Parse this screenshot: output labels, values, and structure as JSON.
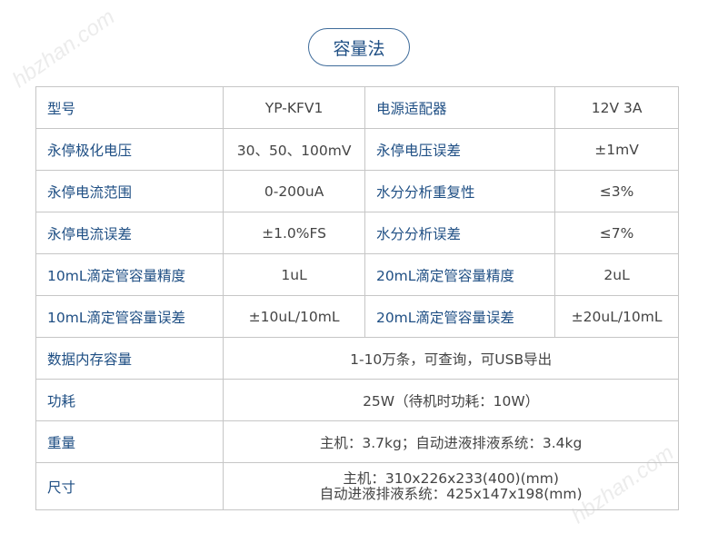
{
  "title": "容量法",
  "watermark": "hbzhan.com",
  "rows4": [
    {
      "l1": "型号",
      "v1": "YP-KFV1",
      "l2": "电源适配器",
      "v2": "12V 3A"
    },
    {
      "l1": "永停极化电压",
      "v1": "30、50、100mV",
      "l2": "永停电压误差",
      "v2": "±1mV"
    },
    {
      "l1": "永停电流范围",
      "v1": "0-200uA",
      "l2": "水分分析重复性",
      "v2": "≤3%"
    },
    {
      "l1": "永停电流误差",
      "v1": "±1.0%FS",
      "l2": "水分分析误差",
      "v2": "≤7%"
    },
    {
      "l1": "10mL滴定管容量精度",
      "v1": "1uL",
      "l2": "20mL滴定管容量精度",
      "v2": "2uL"
    },
    {
      "l1": "10mL滴定管容量误差",
      "v1": "±10uL/10mL",
      "l2": "20mL滴定管容量误差",
      "v2": "±20uL/10mL"
    }
  ],
  "rows2": [
    {
      "l": "数据内存容量",
      "v": "1-10万条，可查询，可USB导出"
    },
    {
      "l": "功耗",
      "v": "25W（待机时功耗：10W）"
    },
    {
      "l": "重量",
      "v": "主机：3.7kg；自动进液排液系统：3.4kg"
    }
  ],
  "size": {
    "l": "尺寸",
    "v1": "主机：310x226x233(400)(mm)",
    "v2": "自动进液排液系统：425x147x198(mm)"
  }
}
